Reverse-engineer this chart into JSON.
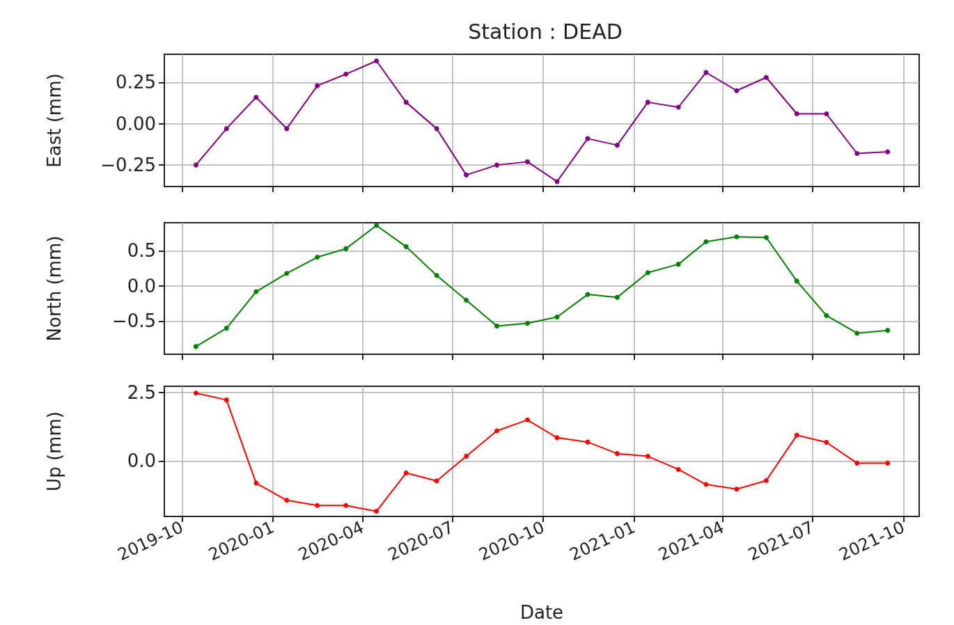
{
  "chart_data": [
    {
      "type": "line",
      "title": "Station : DEAD",
      "ylabel": "East (mm)",
      "x": [
        "2019-10-15",
        "2019-11-15",
        "2019-12-15",
        "2020-01-15",
        "2020-02-15",
        "2020-03-15",
        "2020-04-15",
        "2020-05-15",
        "2020-06-15",
        "2020-07-15",
        "2020-08-15",
        "2020-09-15",
        "2020-10-15",
        "2020-11-15",
        "2020-12-15",
        "2021-01-15",
        "2021-02-15",
        "2021-03-15",
        "2021-04-15",
        "2021-05-15",
        "2021-06-15",
        "2021-07-15",
        "2021-08-15",
        "2021-09-15"
      ],
      "series": [
        {
          "color": "#800080",
          "values": [
            -0.25,
            -0.03,
            0.16,
            -0.03,
            0.23,
            0.3,
            0.38,
            0.13,
            -0.03,
            -0.31,
            -0.25,
            -0.23,
            -0.35,
            -0.09,
            -0.13,
            0.13,
            0.1,
            0.31,
            0.2,
            0.28,
            0.06,
            0.06,
            -0.18,
            -0.17
          ]
        }
      ],
      "xlim": [
        "2019-09-13",
        "2021-10-17"
      ],
      "xticks": [
        "2019-10",
        "2020-01",
        "2020-04",
        "2020-07",
        "2020-10",
        "2021-01",
        "2021-04",
        "2021-07",
        "2021-10"
      ],
      "ylim": [
        -0.38,
        0.42
      ],
      "yticks": [
        {
          "value": -0.25,
          "label": "−0.25"
        },
        {
          "value": 0,
          "label": "0.00"
        },
        {
          "value": 0.25,
          "label": "0.25"
        }
      ],
      "grid": true,
      "marker": "circle",
      "line_style": "solid",
      "tick_labels": "y"
    },
    {
      "type": "line",
      "ylabel": "North (mm)",
      "x": [
        "2019-10-15",
        "2019-11-15",
        "2019-12-15",
        "2020-01-15",
        "2020-02-15",
        "2020-03-15",
        "2020-04-15",
        "2020-05-15",
        "2020-06-15",
        "2020-07-15",
        "2020-08-15",
        "2020-09-15",
        "2020-10-15",
        "2020-11-15",
        "2020-12-15",
        "2021-01-15",
        "2021-02-15",
        "2021-03-15",
        "2021-04-15",
        "2021-05-15",
        "2021-06-15",
        "2021-07-15",
        "2021-08-15",
        "2021-09-15"
      ],
      "series": [
        {
          "color": "#008000",
          "values": [
            -0.86,
            -0.6,
            -0.08,
            0.18,
            0.41,
            0.53,
            0.86,
            0.56,
            0.15,
            -0.2,
            -0.57,
            -0.53,
            -0.44,
            -0.12,
            -0.16,
            0.19,
            0.31,
            0.63,
            0.7,
            0.69,
            0.07,
            -0.42,
            -0.67,
            -0.63
          ]
        }
      ],
      "xlim": [
        "2019-09-13",
        "2021-10-17"
      ],
      "xticks": [
        "2019-10",
        "2020-01",
        "2020-04",
        "2020-07",
        "2020-10",
        "2021-01",
        "2021-04",
        "2021-07",
        "2021-10"
      ],
      "ylim": [
        -0.97,
        0.9
      ],
      "yticks": [
        {
          "value": -0.5,
          "label": "−0.5"
        },
        {
          "value": 0,
          "label": "0.0"
        },
        {
          "value": 0.5,
          "label": "0.5"
        }
      ],
      "grid": true,
      "marker": "circle",
      "line_style": "solid",
      "tick_labels": "y"
    },
    {
      "type": "line",
      "ylabel": "Up (mm)",
      "xlabel": "Date",
      "x": [
        "2019-10-15",
        "2019-11-15",
        "2019-12-15",
        "2020-01-15",
        "2020-02-15",
        "2020-03-15",
        "2020-04-15",
        "2020-05-15",
        "2020-06-15",
        "2020-07-15",
        "2020-08-15",
        "2020-09-15",
        "2020-10-15",
        "2020-11-15",
        "2020-12-15",
        "2021-01-15",
        "2021-02-15",
        "2021-03-15",
        "2021-04-15",
        "2021-05-15",
        "2021-06-15",
        "2021-07-15",
        "2021-08-15",
        "2021-09-15"
      ],
      "series": [
        {
          "color": "#ff0000",
          "values": [
            2.48,
            2.23,
            -0.81,
            -1.44,
            -1.63,
            -1.63,
            -1.84,
            -0.44,
            -0.73,
            0.17,
            1.1,
            1.5,
            0.85,
            0.69,
            0.27,
            0.17,
            -0.31,
            -0.86,
            -1.03,
            -0.72,
            0.94,
            0.68,
            -0.08,
            -0.08
          ]
        }
      ],
      "xlim": [
        "2019-09-13",
        "2021-10-17"
      ],
      "xticks": [
        "2019-10",
        "2020-01",
        "2020-04",
        "2020-07",
        "2020-10",
        "2021-01",
        "2021-04",
        "2021-07",
        "2021-10"
      ],
      "ylim": [
        -2.03,
        2.73
      ],
      "yticks": [
        {
          "value": 0,
          "label": "0.0"
        },
        {
          "value": 2.5,
          "label": "2.5"
        }
      ],
      "grid": true,
      "marker": "circle",
      "line_style": "solid"
    }
  ]
}
